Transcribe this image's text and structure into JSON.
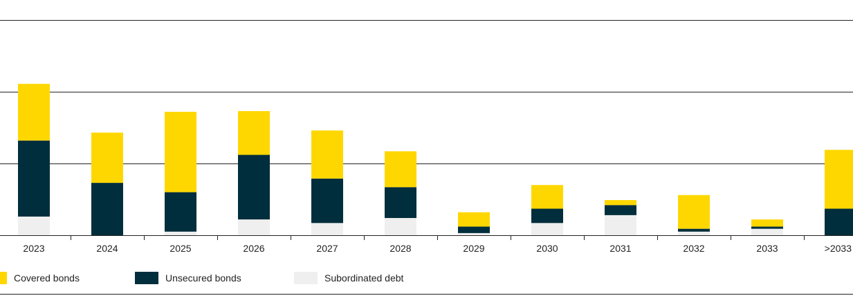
{
  "chart_data": {
    "type": "bar",
    "stacked": true,
    "categories": [
      "2023",
      "2024",
      "2025",
      "2026",
      "2027",
      "2028",
      "2029",
      "2030",
      "2031",
      "2032",
      "2033",
      ">2033"
    ],
    "series": [
      {
        "name": "Subordinated debt",
        "color": "#efefef",
        "values": [
          2.6,
          0,
          0.5,
          2.2,
          1.7,
          2.4,
          0.3,
          1.7,
          2.8,
          0.5,
          0.9,
          0
        ]
      },
      {
        "name": "Unsecured bonds",
        "color": "#002e3c",
        "values": [
          10.6,
          7.3,
          5.5,
          9.0,
          6.2,
          4.3,
          0.9,
          2.0,
          1.4,
          0.4,
          0.3,
          3.7
        ]
      },
      {
        "name": "Covered bonds",
        "color": "#ffd700",
        "values": [
          7.9,
          7.0,
          11.2,
          6.1,
          6.7,
          5.0,
          2.0,
          3.3,
          0.7,
          4.7,
          1.0,
          8.2
        ]
      }
    ],
    "ylim": [
      0,
      30
    ],
    "gridlines": [
      10,
      20,
      30
    ],
    "title": "",
    "xlabel": "",
    "ylabel": "",
    "legend_position": "bottom-left"
  },
  "legend": [
    {
      "label": "Covered bonds",
      "color": "#ffd700"
    },
    {
      "label": "Unsecured bonds",
      "color": "#002e3c"
    },
    {
      "label": "Subordinated debt",
      "color": "#efefef"
    }
  ]
}
